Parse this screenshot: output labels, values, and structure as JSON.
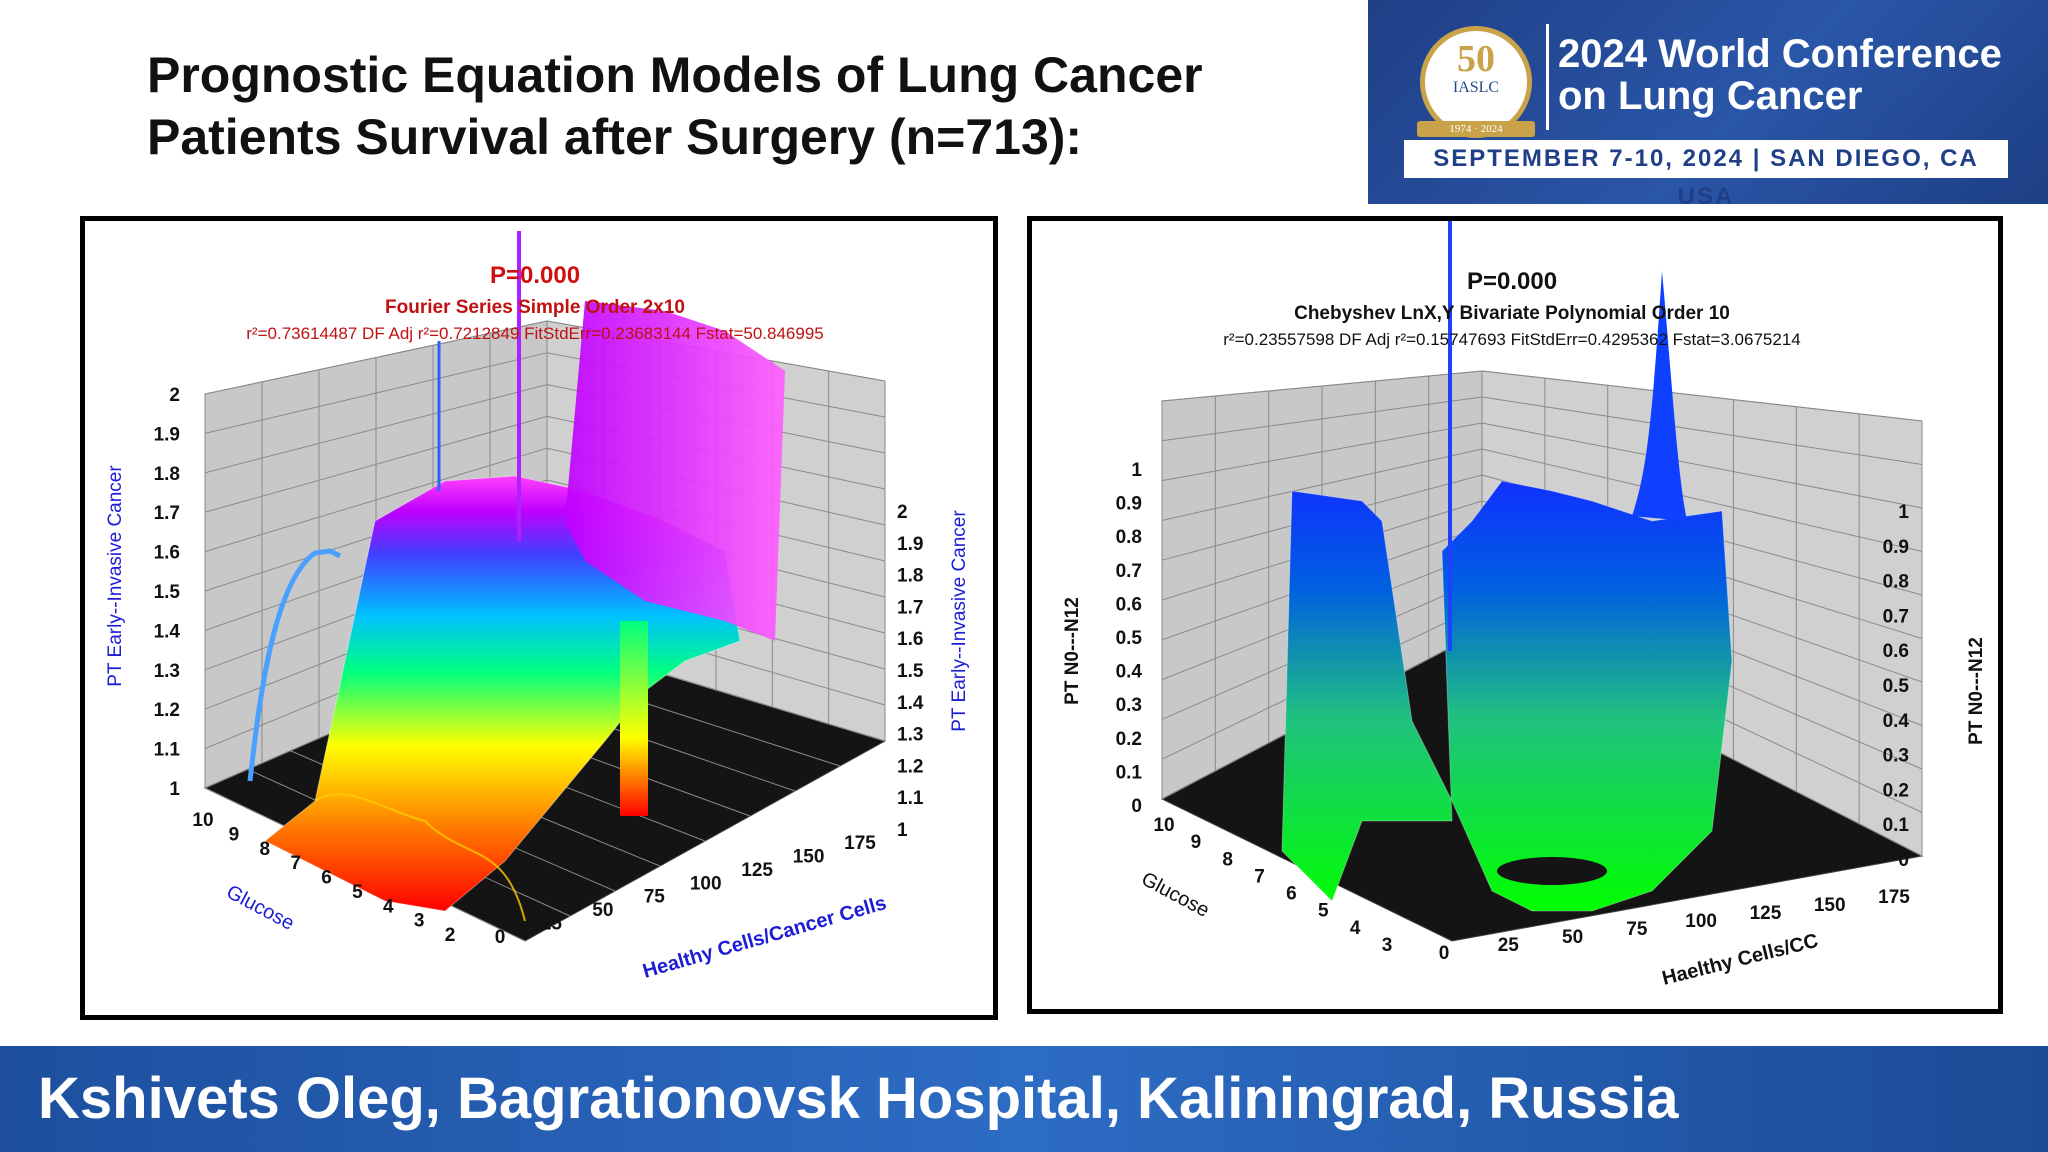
{
  "slide": {
    "title_line1": "Prognostic Equation Models of Lung Cancer",
    "title_line2": "Patients Survival after Surgery (n=713):",
    "footer": "Kshivets Oleg, Bagrationovsk Hospital, Kaliningrad, Russia"
  },
  "conference": {
    "seal_number": "50",
    "seal_org": "IASLC",
    "seal_years": "1974 · 2024",
    "line1": "2024 World Conference",
    "line2": "on Lung Cancer",
    "dates": "SEPTEMBER 7-10, 2024 | SAN DIEGO, CA USA"
  },
  "chart_data": [
    {
      "type": "surface3d",
      "p_label": "P=0.000",
      "title": "Fourier Series Simple Order 2x10",
      "stats": "r²=0.73614487  DF Adj r²=0.7212849  FitStdErr=0.23683144  Fstat=50.846995",
      "zlabel": "PT Early--Invasive Cancer",
      "xlabel": "Glucose",
      "ylabel": "Healthy Cells/Cancer Cells",
      "z_ticks": [
        "1",
        "1.1",
        "1.2",
        "1.3",
        "1.4",
        "1.5",
        "1.6",
        "1.7",
        "1.8",
        "1.9",
        "2"
      ],
      "x_ticks": [
        "10",
        "9",
        "8",
        "7",
        "6",
        "5",
        "4",
        "3",
        "2"
      ],
      "y_ticks": [
        "0",
        "25",
        "50",
        "75",
        "100",
        "125",
        "150",
        "175"
      ],
      "zlim": [
        1,
        2
      ],
      "colormap": [
        "#ff0000",
        "#ff8000",
        "#ffff00",
        "#00ff80",
        "#00c0ff",
        "#4040ff",
        "#c000ff",
        "#ff40ff"
      ],
      "label_color": "#1c1cd6",
      "title_color": "#c01010"
    },
    {
      "type": "surface3d",
      "p_label": "P=0.000",
      "title": "Chebyshev LnX,Y Bivariate Polynomial Order 10",
      "stats": "r²=0.23557598  DF Adj r²=0.15747693  FitStdErr=0.4295362  Fstat=3.0675214",
      "zlabel": "PT N0---N12",
      "xlabel": "Glucose",
      "ylabel": "Haelthy Cells/CC",
      "z_left_ticks": [
        "0",
        "0.1",
        "0.2",
        "0.3",
        "0.4",
        "0.5",
        "0.6",
        "0.7",
        "0.8",
        "0.9",
        "1"
      ],
      "z_right_ticks": [
        "0",
        "0.1",
        "0.2",
        "0.3",
        "0.4",
        "0.5",
        "0.6",
        "0.7",
        "0.8",
        "0.9",
        "1"
      ],
      "x_ticks": [
        "10",
        "9",
        "8",
        "7",
        "6",
        "5",
        "4",
        "3"
      ],
      "y_ticks": [
        "0",
        "25",
        "50",
        "75",
        "100",
        "125",
        "150",
        "175"
      ],
      "zlim": [
        0,
        1
      ],
      "colormap": [
        "#00ff00",
        "#0040ff"
      ],
      "label_color": "#111111",
      "title_color": "#111111"
    }
  ]
}
